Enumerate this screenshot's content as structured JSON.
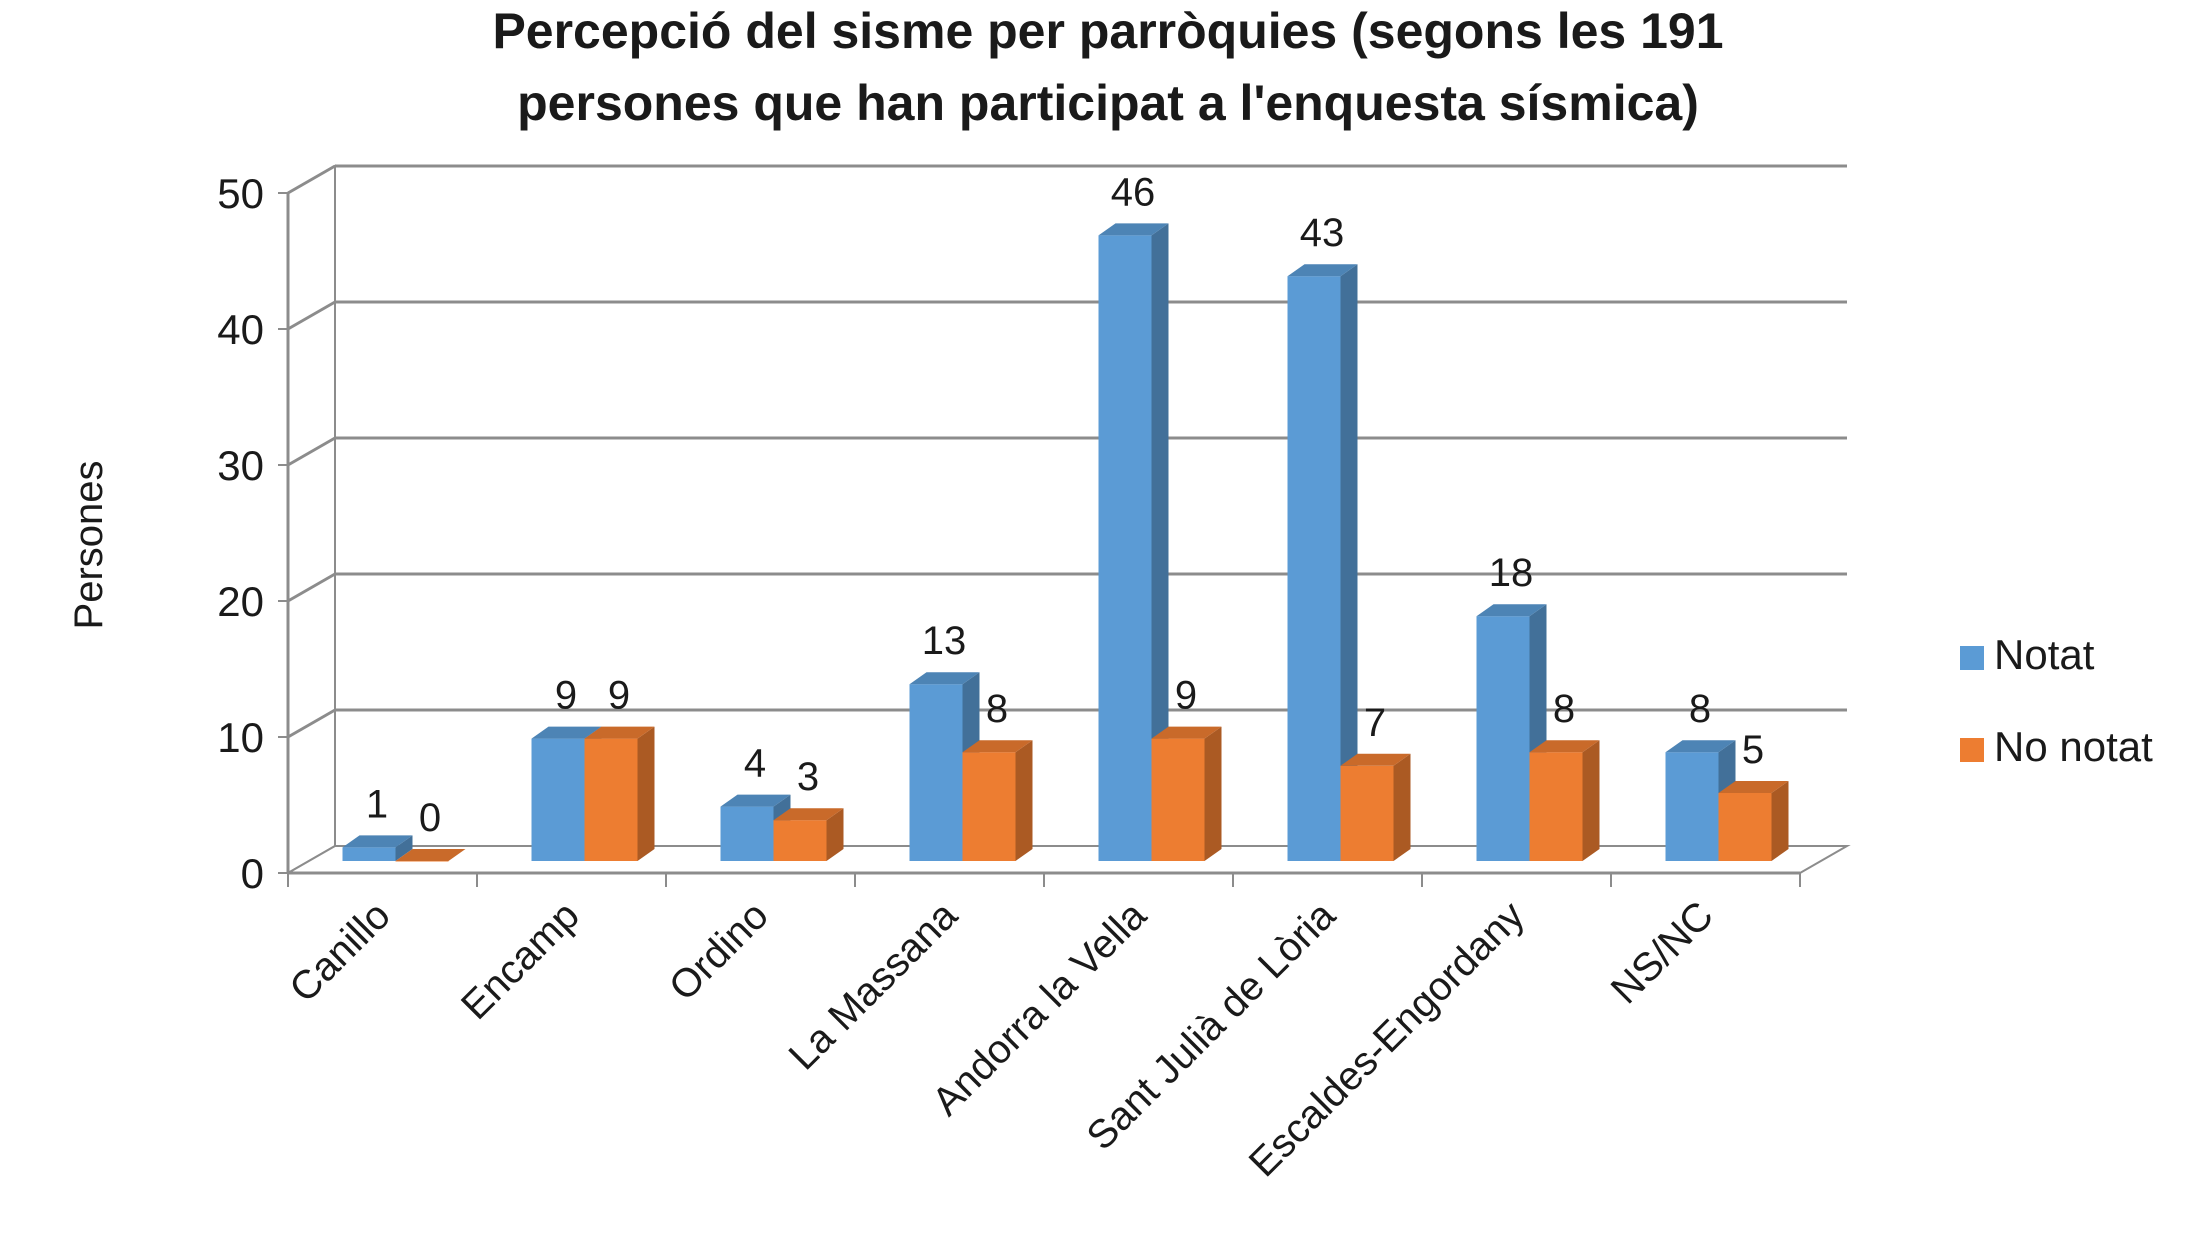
{
  "chart_data": {
    "type": "bar",
    "title_lines": [
      "Percepció del sisme per parròquies (segons les 191",
      "persones que han participat a l'enquesta sísmica)"
    ],
    "xlabel": "",
    "ylabel": "Persones",
    "ylim": [
      0,
      50
    ],
    "yticks": [
      0,
      10,
      20,
      30,
      40,
      50
    ],
    "grid": true,
    "legend_position": "right",
    "categories": [
      "Canillo",
      "Encamp",
      "Ordino",
      "La Massana",
      "Andorra la Vella",
      "Sant Julià de Lòria",
      "Escaldes-Engordany",
      "NS/NC"
    ],
    "series": [
      {
        "name": "Notat",
        "values": [
          1,
          9,
          4,
          13,
          46,
          43,
          18,
          8
        ],
        "color": "#5B9BD5"
      },
      {
        "name": "No notat",
        "values": [
          0,
          9,
          3,
          8,
          9,
          7,
          8,
          5
        ],
        "color": "#ED7D31"
      }
    ]
  }
}
